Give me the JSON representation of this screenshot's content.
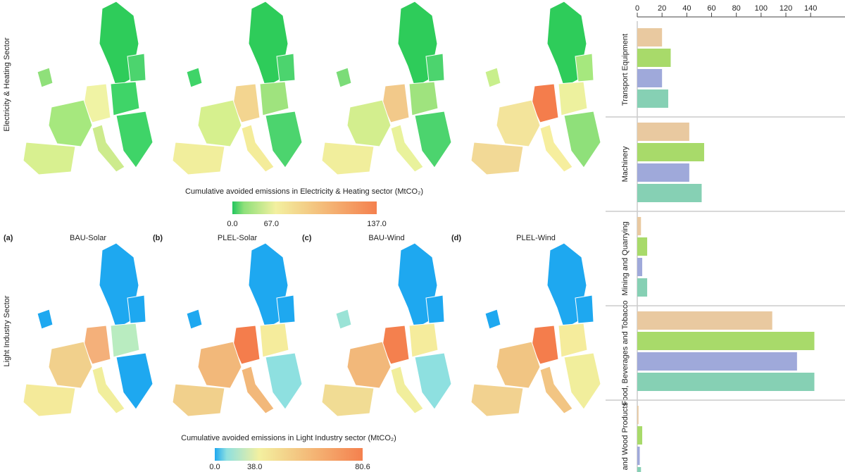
{
  "maps": {
    "row_labels": [
      "Electricity & Heating Sector",
      "Light Industry Sector"
    ],
    "panels": [
      {
        "label": "(a)",
        "title": "BAU-Solar"
      },
      {
        "label": "(b)",
        "title": "PLEL-Solar"
      },
      {
        "label": "(c)",
        "title": "BAU-Wind"
      },
      {
        "label": "(d)",
        "title": "PLEL-Wind"
      }
    ],
    "colorbars": [
      {
        "title": "Cumulative avoided emissions in Electricity & Heating sector (MtCO₂)",
        "ticks": [
          "0.0",
          "67.0",
          "137.0"
        ]
      },
      {
        "title": "Cumulative avoided emissions in Light Industry sector (MtCO₂)",
        "ticks": [
          "0.0",
          "38.0",
          "80.6"
        ]
      }
    ]
  },
  "chart_data": {
    "type": "bar",
    "orientation": "horizontal",
    "categories": [
      "Transport Equipment",
      "Machinery",
      "Mining and Quarrying",
      "Food, Beverages and Tobacco",
      "Wood and Wood Products"
    ],
    "series": [
      {
        "color": "#e9c9a0",
        "values": [
          20,
          42,
          3,
          109,
          1
        ]
      },
      {
        "color": "#a8da6a",
        "values": [
          27,
          54,
          8,
          143,
          4
        ]
      },
      {
        "color": "#9fa9da",
        "values": [
          20,
          42,
          4,
          129,
          2
        ]
      },
      {
        "color": "#86d0b4",
        "values": [
          25,
          52,
          8,
          143,
          3
        ]
      }
    ],
    "xlim": [
      0,
      145
    ],
    "xticks": [
      0,
      20,
      40,
      60,
      80,
      100,
      120,
      140
    ]
  }
}
